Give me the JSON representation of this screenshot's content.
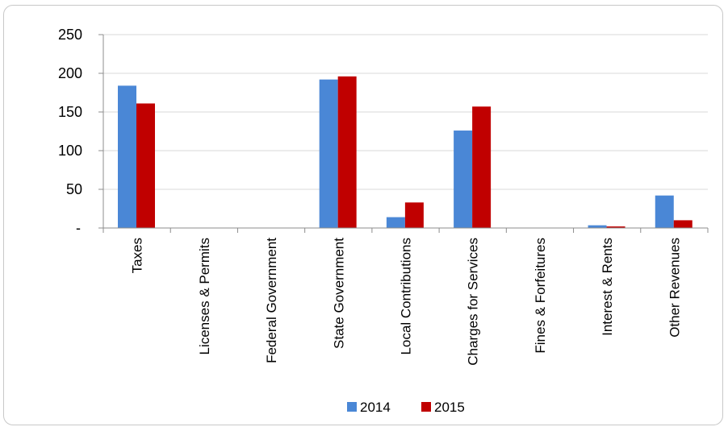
{
  "chart_data": {
    "type": "bar",
    "title": "",
    "xlabel": "",
    "ylabel": "",
    "ylim": [
      0,
      250
    ],
    "yticks": [
      {
        "value": 0,
        "label": "-"
      },
      {
        "value": 50,
        "label": "50"
      },
      {
        "value": 100,
        "label": "100"
      },
      {
        "value": 150,
        "label": "150"
      },
      {
        "value": 200,
        "label": "200"
      },
      {
        "value": 250,
        "label": "250"
      }
    ],
    "grid": true,
    "legend": "bottom",
    "categories": [
      "Taxes",
      "Licenses & Permits",
      "Federal Government",
      "State Government",
      "Local Contributions",
      "Charges for Services",
      "Fines & Forfeitures",
      "Interest & Rents",
      "Other Revenues"
    ],
    "series": [
      {
        "name": "2014",
        "color": "#4a87d6",
        "values": [
          184,
          0.5,
          0,
          192,
          14,
          126,
          0,
          3.5,
          42
        ]
      },
      {
        "name": "2015",
        "color": "#c00000",
        "values": [
          161,
          0.5,
          0,
          196,
          33,
          157,
          0.5,
          2,
          10
        ]
      }
    ]
  }
}
